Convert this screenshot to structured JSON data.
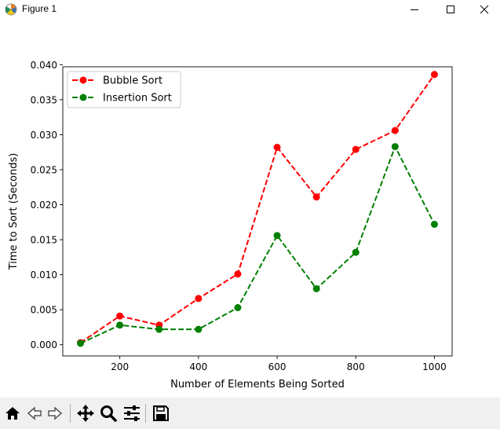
{
  "window": {
    "title": "Figure 1",
    "icon": "matplotlib-figure-icon",
    "controls": [
      "minimize-icon",
      "maximize-icon",
      "close-icon"
    ]
  },
  "toolbar": {
    "tools": [
      {
        "name": "home-button",
        "icon": "home-icon",
        "enabled": true
      },
      {
        "name": "back-button",
        "icon": "arrow-left-icon",
        "enabled": false
      },
      {
        "name": "forward-button",
        "icon": "arrow-right-icon",
        "enabled": false
      },
      {
        "name": "pan-button",
        "icon": "move-icon",
        "enabled": true
      },
      {
        "name": "zoom-button",
        "icon": "magnifier-icon",
        "enabled": true
      },
      {
        "name": "subplots-button",
        "icon": "sliders-icon",
        "enabled": true
      },
      {
        "name": "save-button",
        "icon": "floppy-disk-icon",
        "enabled": true
      }
    ]
  },
  "chart_data": {
    "type": "line",
    "title": "",
    "xlabel": "Number of Elements Being Sorted",
    "ylabel": "Time to Sort (Seconds)",
    "xlim": [
      55,
      1045
    ],
    "ylim": [
      -0.0016,
      0.0397
    ],
    "xticks": [
      200,
      400,
      600,
      800,
      1000
    ],
    "xtick_labels": [
      "200",
      "400",
      "600",
      "800",
      "1000"
    ],
    "yticks": [
      0.0,
      0.005,
      0.01,
      0.015,
      0.02,
      0.025,
      0.03,
      0.035,
      0.04
    ],
    "ytick_labels": [
      "0.000",
      "0.005",
      "0.010",
      "0.015",
      "0.020",
      "0.025",
      "0.030",
      "0.035",
      "0.040"
    ],
    "grid": false,
    "legend_position": "upper-left",
    "x": [
      100,
      200,
      300,
      400,
      500,
      600,
      700,
      800,
      900,
      1000
    ],
    "series": [
      {
        "name": "Bubble Sort",
        "color": "#ff0000",
        "linestyle": "dashed",
        "marker": "circle",
        "values": [
          0.0003,
          0.0041,
          0.0028,
          0.0066,
          0.0101,
          0.0282,
          0.0211,
          0.0279,
          0.0306,
          0.0386
        ]
      },
      {
        "name": "Insertion Sort",
        "color": "#008000",
        "linestyle": "dashed",
        "marker": "circle",
        "values": [
          0.0002,
          0.0028,
          0.0022,
          0.0022,
          0.0053,
          0.0156,
          0.008,
          0.0132,
          0.0283,
          0.0172
        ]
      }
    ]
  }
}
